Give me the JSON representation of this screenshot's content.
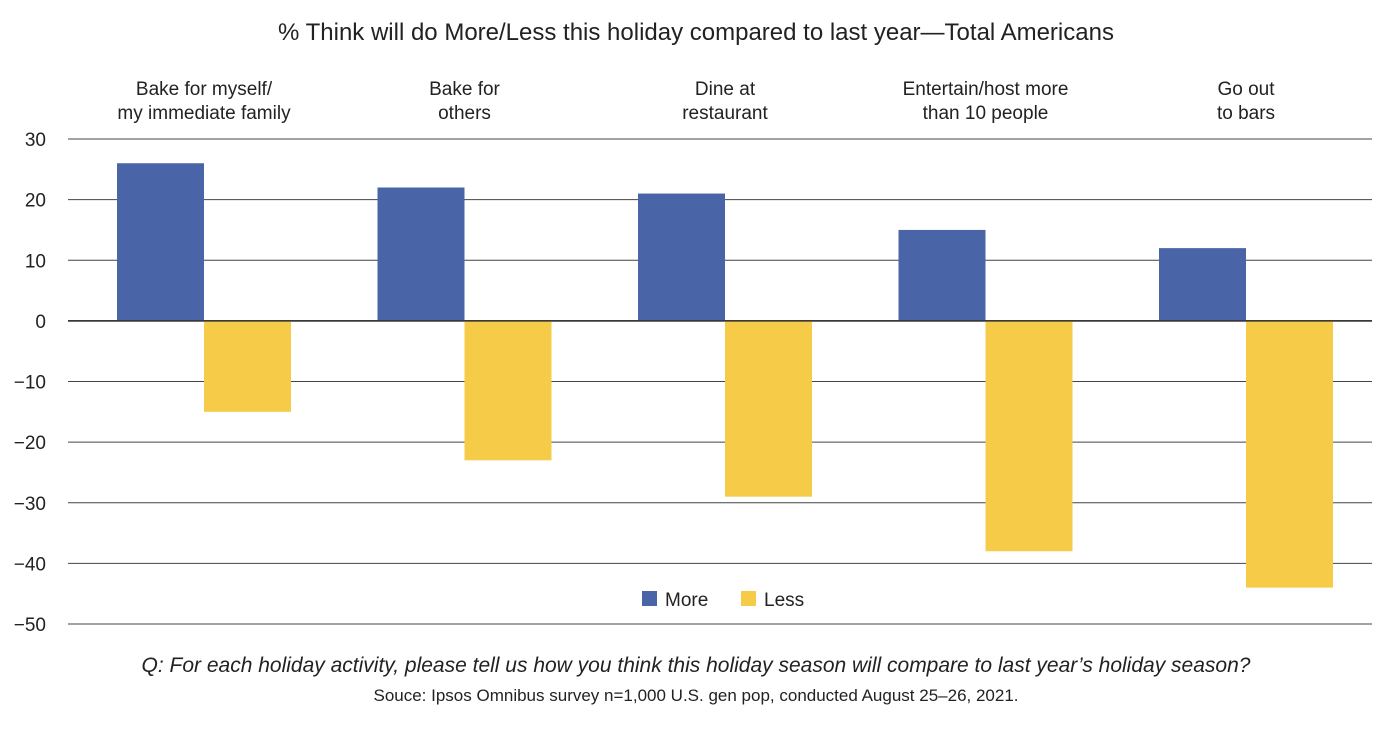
{
  "chart_data": {
    "type": "bar",
    "title": "% Think will do More/Less this holiday compared to last year—Total Americans",
    "categories": [
      [
        "Bake for myself/",
        "my immediate family"
      ],
      [
        "Bake for",
        "others"
      ],
      [
        "Dine at",
        "restaurant"
      ],
      [
        "Entertain/host more",
        "than 10 people"
      ],
      [
        "Go out",
        "to bars"
      ]
    ],
    "series": [
      {
        "name": "More",
        "color": "#4A64A8",
        "values": [
          26,
          22,
          21,
          15,
          12
        ]
      },
      {
        "name": "Less",
        "color": "#F5CB48",
        "values": [
          -15,
          -23,
          -29,
          -38,
          -44
        ]
      }
    ],
    "ylim": [
      -50,
      30
    ],
    "yticks": [
      30,
      20,
      10,
      0,
      -10,
      -20,
      -30,
      -40,
      -50
    ],
    "ytick_labels": [
      "30",
      "20",
      "10",
      "0",
      "−10",
      "−20",
      "−30",
      "−40",
      "−50"
    ],
    "grid": true,
    "legend": "bottom-center"
  },
  "footer": {
    "question": "Q: For each holiday activity, please tell us how you think this holiday season will compare to last year’s holiday season?",
    "source": "Souce: Ipsos Omnibus survey n=1,000 U.S. gen pop, conducted August 25–26, 2021."
  }
}
